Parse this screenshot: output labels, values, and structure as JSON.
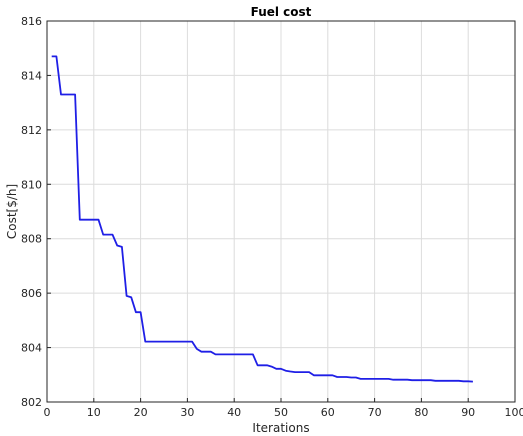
{
  "chart_data": {
    "type": "line",
    "title": "Fuel cost",
    "xlabel": "Iterations",
    "ylabel": "Cost[$/h]",
    "xlim": [
      0,
      100
    ],
    "ylim": [
      802,
      816
    ],
    "xticks": [
      0,
      10,
      20,
      30,
      40,
      50,
      60,
      70,
      80,
      90,
      100
    ],
    "yticks": [
      802,
      804,
      806,
      808,
      810,
      812,
      814,
      816
    ],
    "grid": true,
    "series": [
      {
        "color": "#1f1fe6",
        "x": [
          1,
          2,
          3,
          4,
          5,
          6,
          7,
          8,
          9,
          10,
          11,
          12,
          13,
          14,
          15,
          16,
          17,
          18,
          19,
          20,
          21,
          22,
          23,
          24,
          25,
          26,
          27,
          28,
          29,
          30,
          31,
          32,
          33,
          34,
          35,
          36,
          37,
          38,
          39,
          40,
          41,
          42,
          43,
          44,
          45,
          46,
          47,
          48,
          49,
          50,
          51,
          52,
          53,
          54,
          55,
          56,
          57,
          58,
          59,
          60,
          61,
          62,
          63,
          64,
          65,
          66,
          67,
          68,
          69,
          70,
          71,
          72,
          73,
          74,
          75,
          76,
          77,
          78,
          79,
          80,
          81,
          82,
          83,
          84,
          85,
          86,
          87,
          88,
          89,
          90,
          91
        ],
        "y": [
          814.7,
          814.7,
          813.3,
          813.3,
          813.3,
          813.3,
          808.7,
          808.7,
          808.7,
          808.7,
          808.7,
          808.15,
          808.15,
          808.15,
          807.75,
          807.7,
          805.9,
          805.85,
          805.3,
          805.3,
          804.22,
          804.22,
          804.22,
          804.22,
          804.22,
          804.22,
          804.22,
          804.22,
          804.22,
          804.22,
          804.22,
          803.95,
          803.85,
          803.85,
          803.85,
          803.75,
          803.75,
          803.75,
          803.75,
          803.75,
          803.75,
          803.75,
          803.75,
          803.75,
          803.35,
          803.35,
          803.35,
          803.3,
          803.22,
          803.22,
          803.15,
          803.12,
          803.1,
          803.1,
          803.1,
          803.1,
          802.98,
          802.98,
          802.98,
          802.98,
          802.98,
          802.92,
          802.92,
          802.92,
          802.9,
          802.9,
          802.85,
          802.85,
          802.85,
          802.85,
          802.85,
          802.85,
          802.85,
          802.82,
          802.82,
          802.82,
          802.82,
          802.8,
          802.8,
          802.8,
          802.8,
          802.8,
          802.78,
          802.78,
          802.78,
          802.78,
          802.78,
          802.78,
          802.76,
          802.76,
          802.75
        ]
      }
    ]
  }
}
